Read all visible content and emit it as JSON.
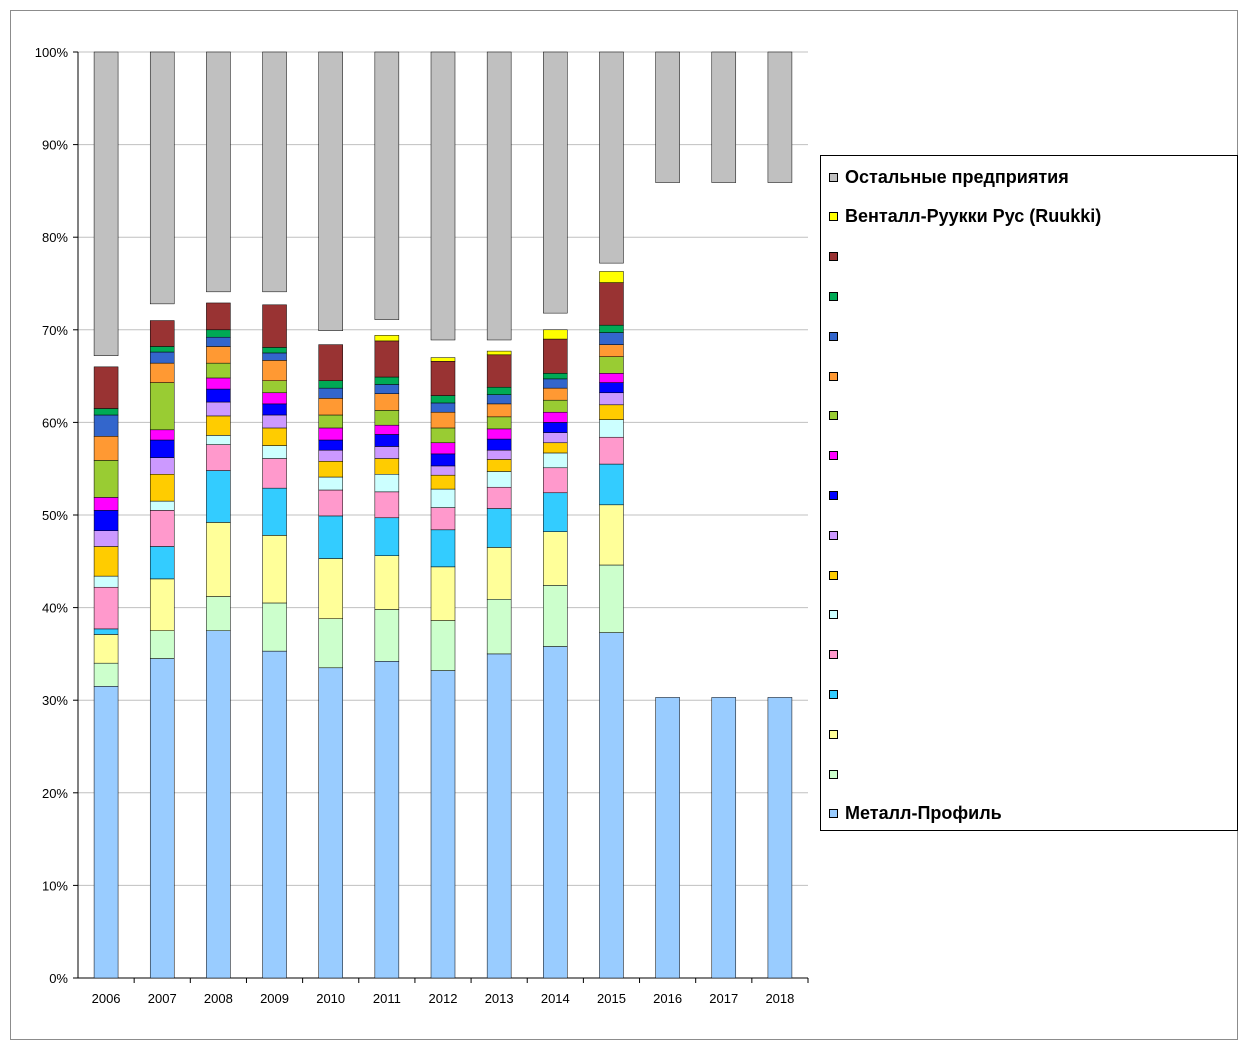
{
  "chart_data": {
    "type": "bar",
    "stacked": true,
    "percent": true,
    "categories": [
      "2006",
      "2007",
      "2008",
      "2009",
      "2010",
      "2011",
      "2012",
      "2013",
      "2014",
      "2015",
      "2016",
      "2017",
      "2018"
    ],
    "y_ticks": [
      "0%",
      "10%",
      "20%",
      "30%",
      "40%",
      "50%",
      "60%",
      "70%",
      "80%",
      "90%",
      "100%"
    ],
    "ylim": [
      0,
      100
    ],
    "grid": true,
    "legend_position": "right",
    "series": [
      {
        "name": "Металл-Профиль",
        "color": "#99ccff",
        "values": [
          31.5,
          34.5,
          37.5,
          35.3,
          33.5,
          34.2,
          33.2,
          35.0,
          35.8,
          37.3,
          30.3,
          30.3,
          30.3
        ]
      },
      {
        "name": "",
        "color": "#ccffcc",
        "values": [
          2.5,
          3.0,
          3.7,
          5.2,
          5.3,
          5.6,
          5.4,
          5.9,
          6.6,
          7.3,
          null,
          null,
          null
        ]
      },
      {
        "name": "",
        "color": "#ffff99",
        "values": [
          3.1,
          5.6,
          8.0,
          7.3,
          6.5,
          5.8,
          5.8,
          5.6,
          5.8,
          6.5,
          null,
          null,
          null
        ]
      },
      {
        "name": "",
        "color": "#33ccff",
        "values": [
          0.6,
          3.5,
          5.6,
          5.1,
          4.6,
          4.1,
          4.0,
          4.2,
          4.2,
          4.4,
          null,
          null,
          null
        ]
      },
      {
        "name": "",
        "color": "#ff99cc",
        "values": [
          4.5,
          3.9,
          2.8,
          3.2,
          2.8,
          2.8,
          2.4,
          2.3,
          2.7,
          2.9,
          null,
          null,
          null
        ]
      },
      {
        "name": "",
        "color": "#ccffff",
        "values": [
          1.2,
          1.0,
          1.0,
          1.4,
          1.4,
          1.9,
          2.0,
          1.7,
          1.6,
          1.9,
          null,
          null,
          null
        ]
      },
      {
        "name": "",
        "color": "#ffcc00",
        "values": [
          3.2,
          2.9,
          2.1,
          1.9,
          1.7,
          1.7,
          1.5,
          1.3,
          1.1,
          1.6,
          null,
          null,
          null
        ]
      },
      {
        "name": "",
        "color": "#cc99ff",
        "values": [
          1.7,
          1.8,
          1.5,
          1.4,
          1.2,
          1.3,
          1.0,
          1.0,
          1.1,
          1.3,
          null,
          null,
          null
        ]
      },
      {
        "name": "",
        "color": "#0000ff",
        "values": [
          2.2,
          1.9,
          1.4,
          1.2,
          1.1,
          1.3,
          1.3,
          1.2,
          1.1,
          1.1,
          null,
          null,
          null
        ]
      },
      {
        "name": "",
        "color": "#ff00ff",
        "values": [
          1.4,
          1.1,
          1.2,
          1.2,
          1.3,
          1.0,
          1.2,
          1.1,
          1.1,
          1.0,
          null,
          null,
          null
        ]
      },
      {
        "name": "",
        "color": "#99cc33",
        "values": [
          4.0,
          5.1,
          1.6,
          1.3,
          1.4,
          1.6,
          1.6,
          1.3,
          1.3,
          1.8,
          null,
          null,
          null
        ]
      },
      {
        "name": "",
        "color": "#ff9933",
        "values": [
          2.6,
          2.1,
          1.8,
          2.2,
          1.8,
          1.8,
          1.7,
          1.4,
          1.3,
          1.3,
          null,
          null,
          null
        ]
      },
      {
        "name": "",
        "color": "#3366cc",
        "values": [
          2.3,
          1.2,
          1.0,
          0.8,
          1.1,
          1.0,
          1.0,
          1.0,
          1.0,
          1.3,
          null,
          null,
          null
        ]
      },
      {
        "name": "",
        "color": "#00aa55",
        "values": [
          0.7,
          0.6,
          0.8,
          0.6,
          0.8,
          0.8,
          0.8,
          0.8,
          0.6,
          0.8,
          null,
          null,
          null
        ]
      },
      {
        "name": "",
        "color": "#993333",
        "values": [
          4.5,
          2.8,
          2.9,
          4.6,
          3.9,
          3.9,
          3.7,
          3.5,
          3.7,
          4.6,
          null,
          null,
          null
        ]
      },
      {
        "name": "Венталл-Руукки Рус (Ruukki)",
        "color": "#ffff00",
        "values": [
          0.0,
          0.0,
          0.0,
          0.0,
          0.0,
          0.6,
          0.4,
          0.4,
          1.0,
          1.2,
          null,
          null,
          null
        ]
      },
      {
        "name": "Остальные предприятия",
        "color": "#c0c0c0",
        "values": [
          32.8,
          27.2,
          25.9,
          25.9,
          30.1,
          28.9,
          31.1,
          31.1,
          28.2,
          22.8,
          14.1,
          14.1,
          14.1
        ]
      }
    ]
  },
  "legend": {
    "title_items": [
      "Остальные предприятия",
      "Венталл-Руукки Рус (Ruukki)",
      "",
      "",
      "",
      "",
      "",
      "",
      "",
      "",
      "",
      "",
      "",
      "",
      "",
      "",
      "Металл-Профиль"
    ]
  }
}
